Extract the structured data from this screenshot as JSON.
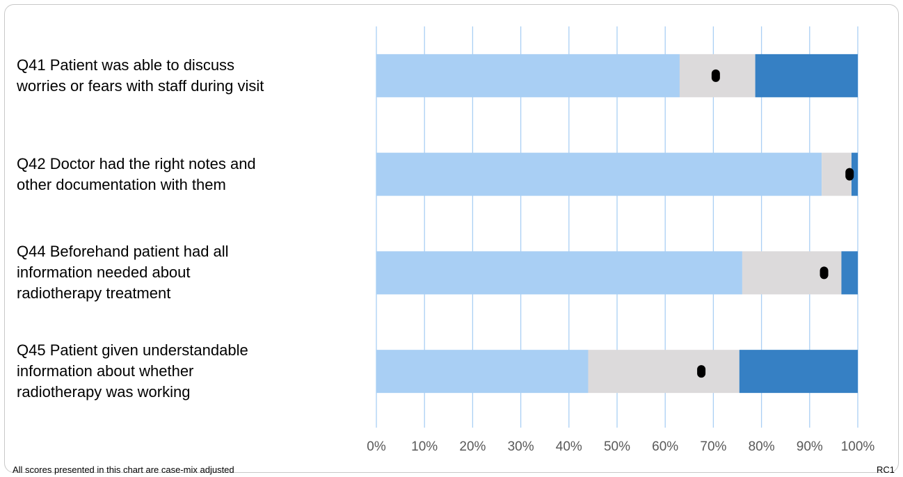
{
  "chart_data": {
    "type": "bar",
    "orientation": "horizontal",
    "stacked": true,
    "categories": [
      [
        "Q41 Patient was able to discuss",
        "worries or fears with staff during visit"
      ],
      [
        "Q42 Doctor had the right notes and",
        "other documentation with them"
      ],
      [
        "Q44 Beforehand patient had all",
        "information needed about",
        "radiotherapy treatment"
      ],
      [
        "Q45 Patient given understandable",
        "information about whether",
        "radiotherapy was working"
      ]
    ],
    "segments": [
      {
        "color": "#a9cff4",
        "values": [
          63,
          92.5,
          76,
          44
        ]
      },
      {
        "color": "#dcdadb",
        "values": [
          15.7,
          6.2,
          20.6,
          31.4
        ]
      },
      {
        "color": "#3680c4",
        "values": [
          21.3,
          1.3,
          3.4,
          24.6
        ]
      }
    ],
    "markers": [
      70.5,
      98.3,
      93,
      67.5
    ],
    "xlim": [
      0,
      100
    ],
    "xticks": [
      "0%",
      "10%",
      "20%",
      "30%",
      "40%",
      "50%",
      "60%",
      "70%",
      "80%",
      "90%",
      "100%"
    ],
    "grid": "vertical"
  },
  "footnote": "All scores presented in this chart are case-mix adjusted",
  "code": "RC1"
}
